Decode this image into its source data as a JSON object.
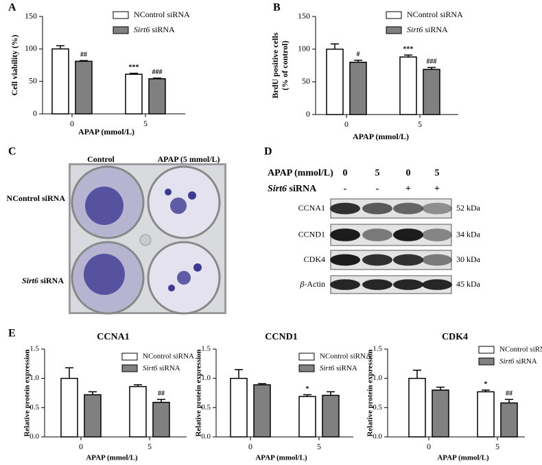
{
  "chart_data": [
    {
      "type": "bar",
      "panel": "A",
      "ylabel": [
        "Cell viability (%)"
      ],
      "xlabel": "APAP (mmol/L)",
      "categories": [
        "0",
        "5"
      ],
      "series": [
        {
          "name": "NControl siRNA",
          "color": "#ffffff",
          "values": [
            100,
            61
          ],
          "errors": [
            5,
            1.5
          ],
          "sig_labels": [
            null,
            "***"
          ]
        },
        {
          "name": "Sirt6 siRNA",
          "name_style": "italic-first-word",
          "color": "#808080",
          "values": [
            81,
            54
          ],
          "errors": [
            1,
            1
          ],
          "sig_labels": [
            "##",
            "###"
          ]
        }
      ],
      "ylim": [
        0,
        150
      ],
      "yticks": [
        0,
        50,
        100,
        150
      ],
      "legend": "upper right"
    },
    {
      "type": "bar",
      "panel": "B",
      "ylabel": [
        "BrdU positive cells",
        "(% of control)"
      ],
      "xlabel": "APAP (mmol/L)",
      "categories": [
        "0",
        "5"
      ],
      "series": [
        {
          "name": "NControl siRNA",
          "color": "#ffffff",
          "values": [
            100,
            88
          ],
          "errors": [
            8,
            3
          ],
          "sig_labels": [
            null,
            "***"
          ]
        },
        {
          "name": "Sirt6 siRNA",
          "name_style": "italic-first-word",
          "color": "#808080",
          "values": [
            80,
            69
          ],
          "errors": [
            3,
            3
          ],
          "sig_labels": [
            "#",
            "###"
          ]
        }
      ],
      "ylim": [
        0,
        150
      ],
      "yticks": [
        0,
        50,
        100,
        150
      ],
      "legend": "upper right"
    },
    {
      "type": "bar",
      "title": "CCNA1",
      "ylabel": [
        "Relative protein expression"
      ],
      "xlabel": "APAP (mmol/L)",
      "categories": [
        "0",
        "5"
      ],
      "series": [
        {
          "name": "NControl siRNA",
          "color": "#ffffff",
          "values": [
            1.0,
            0.86
          ],
          "errors": [
            0.18,
            0.03
          ],
          "sig_labels": [
            null,
            null
          ]
        },
        {
          "name": "Sirt6 siRNA",
          "name_style": "italic-first-word",
          "color": "#808080",
          "values": [
            0.72,
            0.59
          ],
          "errors": [
            0.05,
            0.05
          ],
          "sig_labels": [
            null,
            "##"
          ]
        }
      ],
      "ylim": [
        0,
        1.5
      ],
      "yticks": [
        {
          "value": 0,
          "label": "0.0"
        },
        {
          "value": 0.5,
          "label": "0.5"
        },
        {
          "value": 1,
          "label": "1.0"
        },
        {
          "value": 1.5,
          "label": "1.5"
        }
      ],
      "legend": "upper right"
    },
    {
      "type": "bar",
      "title": "CCND1",
      "ylabel": [
        "Relative protein expression"
      ],
      "xlabel": "APAP (mmol/L)",
      "categories": [
        "0",
        "5"
      ],
      "series": [
        {
          "name": "NControl siRNA",
          "color": "#ffffff",
          "values": [
            1.0,
            0.69
          ],
          "errors": [
            0.15,
            0.03
          ],
          "sig_labels": [
            null,
            "*"
          ]
        },
        {
          "name": "Sirt6 siRNA",
          "name_style": "italic-first-word",
          "color": "#808080",
          "values": [
            0.89,
            0.71
          ],
          "errors": [
            0.02,
            0.06
          ],
          "sig_labels": [
            null,
            null
          ]
        }
      ],
      "ylim": [
        0,
        1.5
      ],
      "yticks": [
        {
          "value": 0,
          "label": "0.0"
        },
        {
          "value": 0.5,
          "label": "0.5"
        },
        {
          "value": 1,
          "label": "1.0"
        },
        {
          "value": 1.5,
          "label": "1.5"
        }
      ],
      "legend": "upper right"
    },
    {
      "type": "bar",
      "title": "CDK4",
      "ylabel": [
        "Relative protein expression"
      ],
      "xlabel": "APAP (mmol/L)",
      "categories": [
        "0",
        "5"
      ],
      "series": [
        {
          "name": "NControl siRNA",
          "color": "#ffffff",
          "values": [
            1.0,
            0.77
          ],
          "errors": [
            0.14,
            0.03
          ],
          "sig_labels": [
            null,
            "*"
          ]
        },
        {
          "name": "Sirt6 siRNA",
          "name_style": "italic-first-word",
          "color": "#808080",
          "values": [
            0.8,
            0.58
          ],
          "errors": [
            0.05,
            0.06
          ],
          "sig_labels": [
            null,
            "##"
          ]
        }
      ],
      "ylim": [
        0,
        1.5
      ],
      "yticks": [
        {
          "value": 0,
          "label": "0.0"
        },
        {
          "value": 0.5,
          "label": "0.5"
        },
        {
          "value": 1,
          "label": "1.0"
        },
        {
          "value": 1.5,
          "label": "1.5"
        }
      ],
      "legend": "upper right"
    }
  ],
  "photo": {
    "panel": "C",
    "columns": [
      "Control",
      "APAP (5 mmol/L)"
    ],
    "rows": [
      "NControl siRNA",
      "Sirt6 siRNA"
    ]
  },
  "blot": {
    "panel": "D",
    "apap_label": "APAP (mmol/L)",
    "apap": [
      "0",
      "5",
      "0",
      "5"
    ],
    "sirna_label": "Sirt6 siRNA",
    "sirna": [
      "-",
      "-",
      "+",
      "+"
    ],
    "bands": [
      {
        "name": "CCNA1",
        "size": "52 kDa"
      },
      {
        "name": "CCND1",
        "size": "34 kDa"
      },
      {
        "name": "CDK4",
        "size": "30 kDa"
      },
      {
        "name": "β-Actin",
        "size": "45 kDa"
      }
    ]
  },
  "panel_e": "E"
}
